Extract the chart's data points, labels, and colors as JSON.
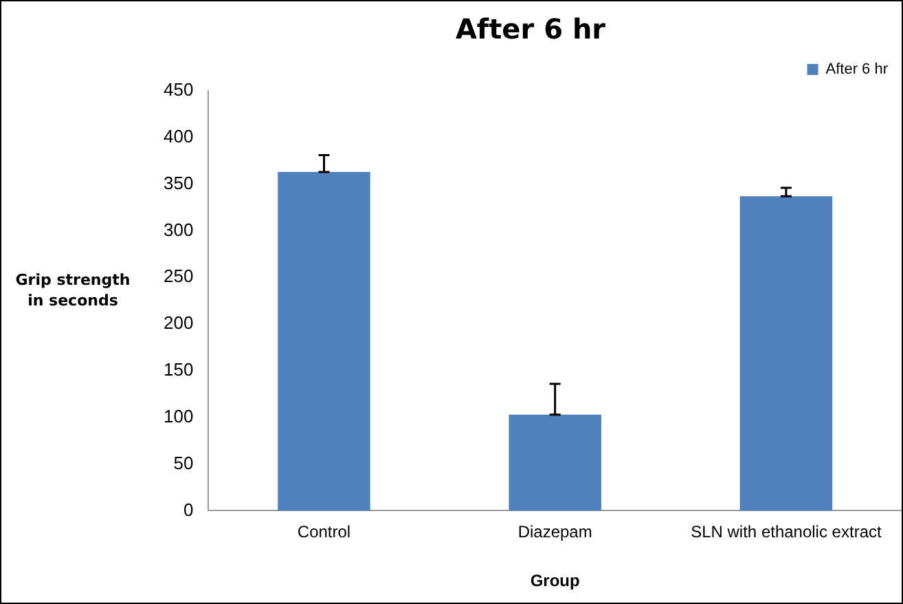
{
  "chart_data": {
    "type": "bar",
    "title": "After 6 hr",
    "xlabel": "Group",
    "ylabel": "Grip strength in seconds",
    "categories": [
      "Control",
      "Diazepam",
      "SLN with ethanolic extract"
    ],
    "series": [
      {
        "name": "After 6 hr",
        "color": "#4f81bd",
        "values": [
          363,
          103,
          337
        ],
        "errors": [
          [
            363,
            381
          ],
          [
            103,
            136
          ],
          [
            337,
            346
          ]
        ]
      }
    ],
    "ylim": [
      0,
      450
    ],
    "yticks": [
      0,
      50,
      100,
      150,
      200,
      250,
      300,
      350,
      400,
      450
    ],
    "grid": false,
    "legend": "top right"
  }
}
